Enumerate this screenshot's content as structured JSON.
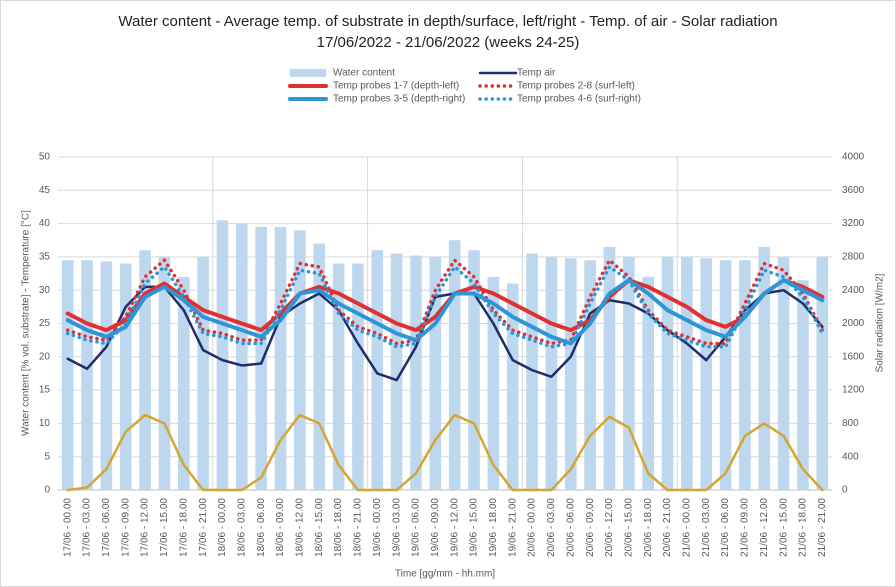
{
  "chart_data": {
    "type": "line",
    "title": "Water content - Average temp. of substrate in depth/surface, left/right - Temp. of air - Solar radiation",
    "subtitle": "17/06/2022 - 21/06/2022 (weeks 24-25)",
    "y_label": "Water content [% vol. substrate] - Temperature [°C]",
    "y2_label": "Solar radiation [W/m2]",
    "x_label": "Time [gg/mm - hh.mm]",
    "categories": [
      "17/06 - 00.00",
      "17/06 - 03.00",
      "17/06 - 06.00",
      "17/06 - 09.00",
      "17/06 - 12.00",
      "17/06 - 15.00",
      "17/06 - 18.00",
      "17/06 - 21.00",
      "18/06 - 00.00",
      "18/06 - 03.00",
      "18/06 - 06.00",
      "18/06 - 09.00",
      "18/06 - 12.00",
      "18/06 - 15.00",
      "18/06 - 18.00",
      "18/06 - 21.00",
      "19/06 - 00.00",
      "19/06 - 03.00",
      "19/06 - 06.00",
      "19/06 - 09.00",
      "19/06 - 12.00",
      "19/06 - 15.00",
      "19/06 - 18.00",
      "19/06 - 21.00",
      "20/06 - 00.00",
      "20/06 - 03.00",
      "20/06 - 06.00",
      "20/06 - 09.00",
      "20/06 - 12.00",
      "20/06 - 15.00",
      "20/06 - 18.00",
      "20/06 - 21.00",
      "21/06 - 00.00",
      "21/06 - 03.00",
      "21/06 - 06.00",
      "21/06 - 09.00",
      "21/06 - 12.00",
      "21/06 - 15.00",
      "21/06 - 18.00",
      "21/06 - 21.00"
    ],
    "series": [
      {
        "name": "Water content",
        "type": "bar",
        "color": "#bdd7ee",
        "values": [
          34.5,
          34.5,
          34.3,
          34,
          36,
          35,
          32,
          35,
          40.5,
          40,
          39.5,
          39.5,
          39,
          37,
          34,
          34,
          36,
          35.5,
          35.2,
          35,
          37.5,
          36,
          32,
          31,
          35.5,
          35,
          34.8,
          34.5,
          36.5,
          35,
          32,
          35,
          35,
          34.8,
          34.5,
          34.5,
          36.5,
          35,
          31.5,
          35
        ]
      },
      {
        "name": "Temp air",
        "type": "line",
        "color": "#1f2d6b",
        "width": 2.5,
        "values": [
          19.7,
          18.2,
          21.5,
          27.5,
          30.5,
          30.5,
          27,
          21,
          19.5,
          18.7,
          19,
          26,
          28,
          29.5,
          27,
          22,
          17.5,
          16.5,
          21.5,
          29,
          29.5,
          29.5,
          25,
          19.5,
          18,
          17,
          20,
          26.5,
          28.5,
          28,
          26.5,
          24,
          22,
          19.5,
          23,
          27,
          29.5,
          30,
          28,
          24.5
        ]
      },
      {
        "name": "Temp probes 1-7 (depth-left)",
        "type": "line",
        "color": "#e03030",
        "width": 4,
        "values": [
          26.5,
          25,
          24,
          25.5,
          29.5,
          31,
          29,
          27,
          26,
          25,
          24,
          26.5,
          29.5,
          30.5,
          29.5,
          28,
          26.5,
          25,
          24,
          26,
          29.5,
          30.5,
          29.5,
          28,
          26.5,
          25,
          24,
          25.5,
          29,
          31.5,
          30.5,
          29,
          27.5,
          25.5,
          24.5,
          26,
          29.5,
          31.5,
          30.5,
          29
        ]
      },
      {
        "name": "Temp probes 2-8 (surf-left)",
        "type": "line",
        "dotted": true,
        "color": "#e03030",
        "width": 3.5,
        "values": [
          24,
          23,
          22.5,
          26,
          32,
          34.5,
          30,
          24,
          23.5,
          22.5,
          22.5,
          28,
          34,
          33.5,
          27,
          24.5,
          23.5,
          22,
          22.5,
          30,
          34.5,
          32,
          27,
          24,
          23,
          22,
          22.5,
          29,
          34.5,
          32,
          27,
          24,
          23,
          22,
          22,
          28,
          34,
          33,
          29.5,
          24
        ]
      },
      {
        "name": "Temp probes 3-5 (depth-right)",
        "type": "line",
        "color": "#2e95d6",
        "width": 4,
        "values": [
          25.5,
          24,
          23,
          24.5,
          29,
          30.5,
          28.5,
          26,
          25,
          24,
          23,
          25.5,
          29.5,
          30,
          28,
          26.5,
          25,
          23.5,
          22.5,
          25,
          29.5,
          29.5,
          28,
          26,
          24.5,
          23,
          22,
          25,
          29.5,
          31.5,
          29.5,
          27,
          25.5,
          24,
          23,
          26,
          29.5,
          31.5,
          30,
          28.5
        ]
      },
      {
        "name": "Temp probes 4-6 (surf-right)",
        "type": "line",
        "dotted": true,
        "color": "#2e95d6",
        "width": 3.5,
        "values": [
          23.5,
          22.5,
          22,
          25,
          31,
          33.5,
          29,
          23.5,
          23,
          22,
          22,
          27,
          33,
          32.5,
          26.5,
          24,
          23,
          21.5,
          22,
          29,
          33.5,
          31,
          26.5,
          23.5,
          22.5,
          21.5,
          22,
          28,
          33.5,
          31.5,
          26.5,
          23.5,
          22.5,
          21.5,
          21.5,
          27,
          33,
          32,
          29,
          23.5
        ]
      },
      {
        "type": "line",
        "axis": "y2",
        "color": "#d4a531",
        "width": 2.5,
        "values": [
          0,
          30,
          250,
          700,
          900,
          800,
          300,
          0,
          0,
          0,
          150,
          600,
          900,
          800,
          300,
          0,
          0,
          0,
          200,
          600,
          900,
          800,
          300,
          0,
          0,
          0,
          250,
          650,
          880,
          750,
          200,
          0,
          0,
          0,
          200,
          650,
          800,
          650,
          250,
          0
        ]
      }
    ],
    "ylim": [
      0,
      50
    ],
    "yticks": [
      0,
      5,
      10,
      15,
      20,
      25,
      30,
      35,
      40,
      45,
      50
    ],
    "y2lim": [
      0,
      4000
    ],
    "y2ticks": [
      0,
      400,
      800,
      1200,
      1600,
      2000,
      2400,
      2800,
      3200,
      3600,
      4000
    ],
    "grid": true
  }
}
